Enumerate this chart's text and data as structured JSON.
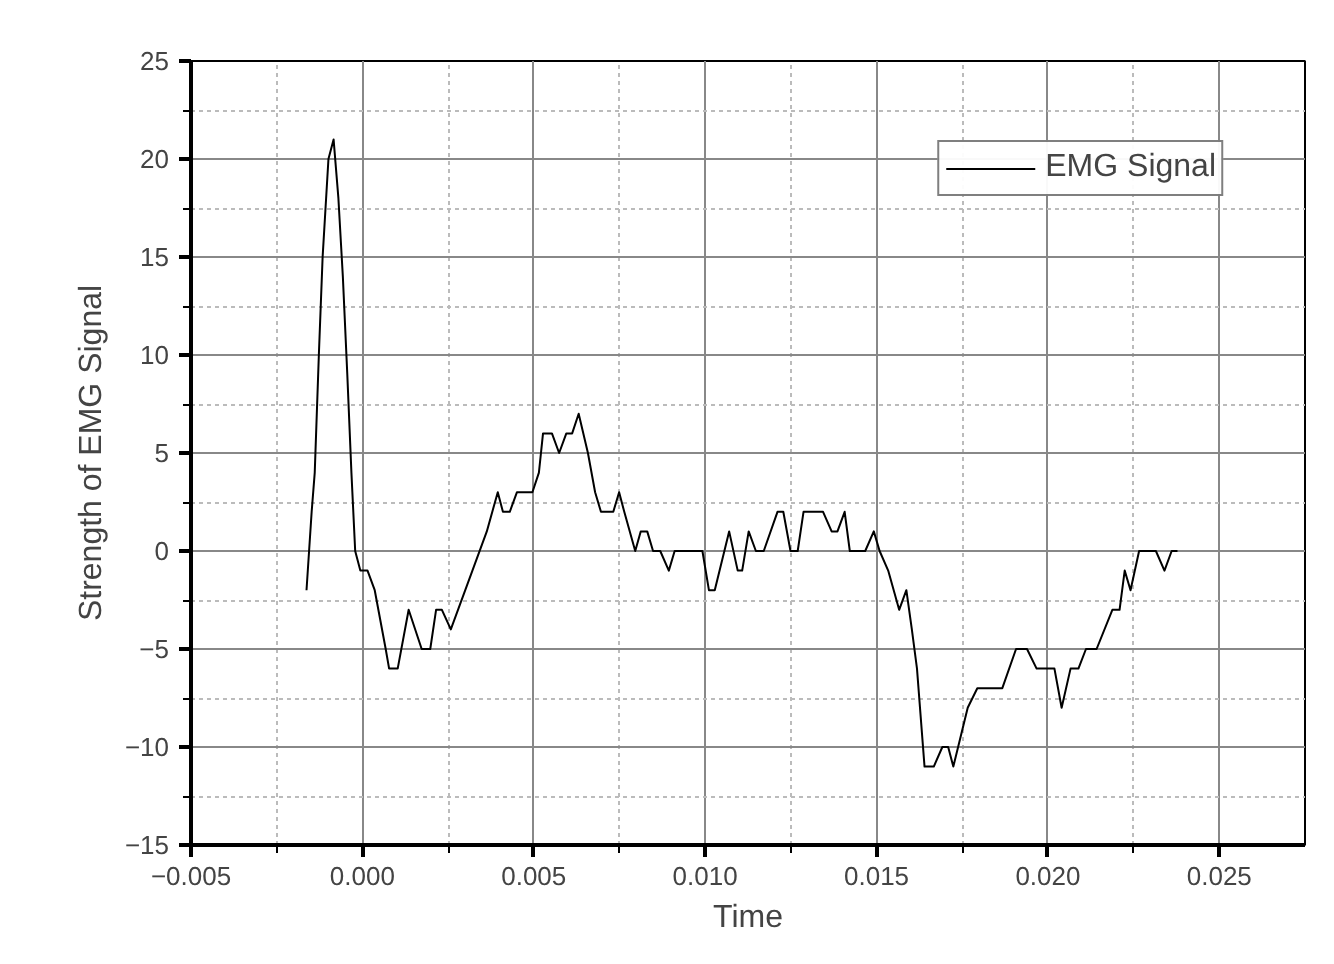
{
  "chart_data": {
    "type": "line",
    "xlabel": "Time",
    "ylabel": "Strength of EMG Signal",
    "xlim": [
      -0.005,
      0.0275
    ],
    "ylim": [
      -15,
      25
    ],
    "xticks": [
      -0.005,
      {
        "value": 0,
        "label": "0.000"
      },
      0.005,
      {
        "value": 0.01,
        "label": "0.010"
      },
      0.015,
      {
        "value": 0.02,
        "label": "0.020"
      },
      0.025
    ],
    "yticks": [
      -15,
      -10,
      -5,
      0,
      5,
      10,
      15,
      20,
      25
    ],
    "grid": true,
    "legend": "top right",
    "marker": "none",
    "line_style": "solid",
    "series": [
      {
        "name": "EMG Signal",
        "color": "#000000",
        "x": [
          -0.00163,
          -0.00148,
          -0.00139,
          -0.00127,
          -0.00116,
          -0.00099,
          -0.00084,
          -0.0007,
          -0.00057,
          -0.00044,
          -0.00032,
          -0.00021,
          -6e-05,
          0.00015,
          0.00036,
          0.00068,
          0.00078,
          0.00103,
          0.00135,
          0.00173,
          0.00198,
          0.00215,
          0.00232,
          0.00258,
          0.00321,
          0.00363,
          0.00395,
          0.0041,
          0.0043,
          0.00451,
          0.00496,
          0.00515,
          0.00527,
          0.00553,
          0.00574,
          0.00595,
          0.00612,
          0.00631,
          0.00658,
          0.00679,
          0.00696,
          0.00732,
          0.00749,
          0.00764,
          0.00796,
          0.00812,
          0.00831,
          0.00848,
          0.00869,
          0.00894,
          0.00911,
          0.00992,
          0.01011,
          0.01028,
          0.0107,
          0.01095,
          0.01108,
          0.01127,
          0.01148,
          0.01171,
          0.01211,
          0.01228,
          0.01249,
          0.0127,
          0.01287,
          0.01344,
          0.01369,
          0.01386,
          0.01407,
          0.01422,
          0.01467,
          0.01492,
          0.01509,
          0.01534,
          0.01566,
          0.01587,
          0.01603,
          0.01618,
          0.0164,
          0.01667,
          0.01692,
          0.01709,
          0.01724,
          0.01766,
          0.01794,
          0.01867,
          0.01907,
          0.01939,
          0.01967,
          0.02019,
          0.0204,
          0.02066,
          0.02089,
          0.02111,
          0.02142,
          0.02188,
          0.02209,
          0.02224,
          0.02241,
          0.02266,
          0.02315,
          0.0234,
          0.02361,
          0.02378
        ],
        "values": [
          -2,
          2,
          4,
          10,
          15,
          20,
          21,
          18,
          14,
          9,
          4,
          0,
          -1,
          -1,
          -2,
          -5,
          -6,
          -6,
          -3,
          -5,
          -5,
          -3,
          -3,
          -4,
          -1,
          1,
          3,
          2,
          2,
          3,
          3,
          4,
          6,
          6,
          5,
          6,
          6,
          7,
          5,
          3,
          2,
          2,
          3,
          2,
          0,
          1,
          1,
          0,
          0,
          -1,
          0,
          0,
          -2,
          -2,
          1,
          -1,
          -1,
          1,
          0,
          0,
          2,
          2,
          0,
          0,
          2,
          2,
          1,
          1,
          2,
          0,
          0,
          1,
          0,
          -1,
          -3,
          -2,
          -4,
          -6,
          -11,
          -11,
          -10,
          -10,
          -11,
          -8,
          -7,
          -7,
          -5,
          -5,
          -6,
          -6,
          -8,
          -6,
          -6,
          -5,
          -5,
          -3,
          -3,
          -1,
          -2,
          0,
          0,
          -1,
          0,
          0
        ]
      }
    ]
  }
}
